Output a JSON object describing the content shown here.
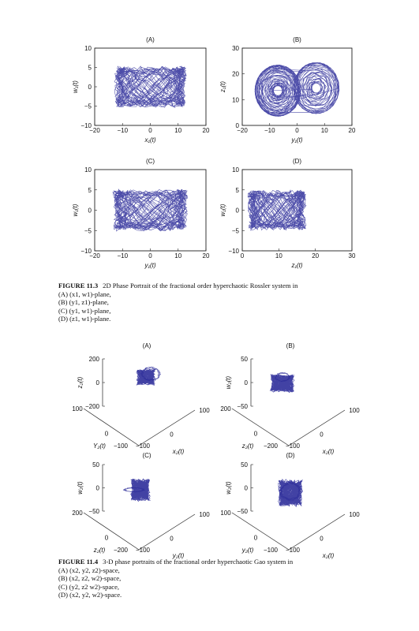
{
  "line_color": "#2e2e9a",
  "figure_11_3": {
    "caption_label": "FIGURE 11.3",
    "caption_text": "2D Phase Portrait of the fractional order hyperchaotic Rossler system in",
    "caption_items": [
      "(A) (x1, w1)-plane,",
      "(B) (y1, z1)-plane,",
      "(C) (y1, w1)-plane,",
      "(D) (z1, w1)-plane."
    ],
    "panels": [
      {
        "title": "(A)",
        "xlabel": "x₁(t)",
        "ylabel": "w₁(t)",
        "xticks": [
          "−20",
          "−10",
          "0",
          "10",
          "20"
        ],
        "yticks": [
          "−10",
          "−5",
          "0",
          "5",
          "10"
        ]
      },
      {
        "title": "(B)",
        "xlabel": "y₁(t)",
        "ylabel": "z₁(t)",
        "xticks": [
          "−20",
          "−10",
          "0",
          "10",
          "20"
        ],
        "yticks": [
          "0",
          "10",
          "20",
          "30"
        ]
      },
      {
        "title": "(C)",
        "xlabel": "y₁(t)",
        "ylabel": "w₁(t)",
        "xticks": [
          "−20",
          "−10",
          "0",
          "10",
          "20"
        ],
        "yticks": [
          "−10",
          "−5",
          "0",
          "5",
          "10"
        ]
      },
      {
        "title": "(D)",
        "xlabel": "z₁(t)",
        "ylabel": "w₁(t)",
        "xticks": [
          "0",
          "10",
          "20",
          "30"
        ],
        "yticks": [
          "−10",
          "−5",
          "0",
          "5",
          "10"
        ]
      }
    ]
  },
  "figure_11_4": {
    "caption_label": "FIGURE 11.4",
    "caption_text": "3-D phase portraits of the fractional order hyperchaotic Gao system in",
    "caption_items": [
      "(A) (x2, y2, z2)-space,",
      "(B) (x2, z2, w2)-space,",
      "(C) (y2, z2 w2)-space,",
      "(D) (x2, y2, w2)-space."
    ],
    "panels": [
      {
        "title": "(A)",
        "vlabel": "z₂(t)",
        "leftlabel": "Y₂(t)",
        "rightlabel": "x₂(t)",
        "vticks": [
          "200",
          "0",
          "−200"
        ],
        "leftticks": [
          "100",
          "0",
          "−100"
        ],
        "rightticks": [
          "−100",
          "0",
          "100"
        ]
      },
      {
        "title": "(B)",
        "vlabel": "w₂(t)",
        "leftlabel": "z₂(t)",
        "rightlabel": "x₂(t)",
        "vticks": [
          "50",
          "0",
          "−50"
        ],
        "leftticks": [
          "200",
          "0",
          "−200"
        ],
        "rightticks": [
          "−100",
          "0",
          "100"
        ]
      },
      {
        "title": "(C)",
        "vlabel": "w₂(t)",
        "leftlabel": "z₂(t)",
        "rightlabel": "y₂(t)",
        "vticks": [
          "50",
          "0",
          "−50"
        ],
        "leftticks": [
          "200",
          "0",
          "−200"
        ],
        "rightticks": [
          "−100",
          "0",
          "100"
        ]
      },
      {
        "title": "(D)",
        "vlabel": "w₂(t)",
        "leftlabel": "y₂(t)",
        "rightlabel": "x₂(t)",
        "vticks": [
          "50",
          "0",
          "−50"
        ],
        "leftticks": [
          "100",
          "0",
          "−100"
        ],
        "rightticks": [
          "−100",
          "0",
          "100"
        ]
      }
    ]
  }
}
